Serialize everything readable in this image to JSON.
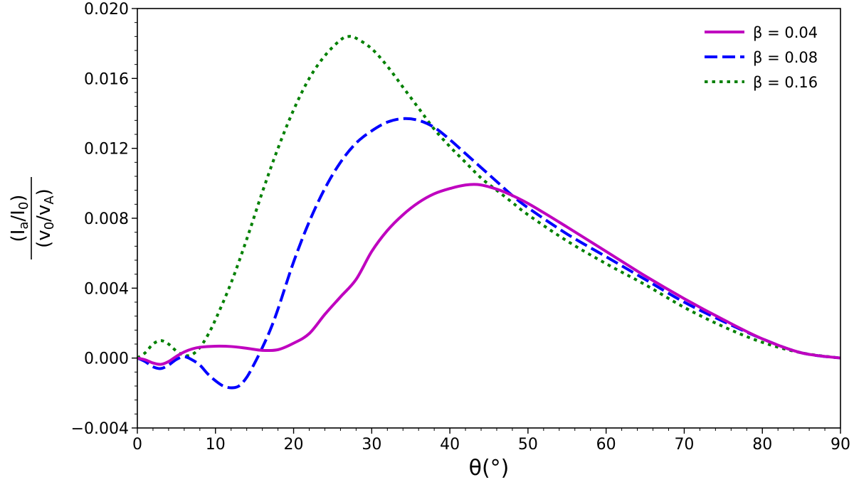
{
  "chart_data": {
    "type": "line",
    "xlabel": "θ(°)",
    "ylabel": "(I_a/I_0)/(v_0/v_A)",
    "xlim": [
      0,
      90
    ],
    "ylim": [
      -0.004,
      0.02
    ],
    "x_ticks": [
      "0",
      "10",
      "20",
      "30",
      "40",
      "50",
      "60",
      "70",
      "80",
      "90"
    ],
    "y_ticks": [
      "−0.004",
      "0.000",
      "0.004",
      "0.008",
      "0.012",
      "0.016",
      "0.020"
    ],
    "grid": false,
    "legend_position": "top-right",
    "series": [
      {
        "name": "β = 0.04",
        "color": "#BF00BF",
        "style": "solid",
        "points": [
          [
            0,
            0
          ],
          [
            1,
            -0.0001
          ],
          [
            2,
            -0.00028
          ],
          [
            3,
            -0.00036
          ],
          [
            4,
            -0.0002
          ],
          [
            5,
            0.0001
          ],
          [
            6,
            0.00035
          ],
          [
            7,
            0.00052
          ],
          [
            8,
            0.00062
          ],
          [
            10,
            0.00068
          ],
          [
            12,
            0.00066
          ],
          [
            14,
            0.00056
          ],
          [
            16,
            0.00044
          ],
          [
            18,
            0.00048
          ],
          [
            20,
            0.00085
          ],
          [
            22,
            0.0014
          ],
          [
            24,
            0.0025
          ],
          [
            26,
            0.0035
          ],
          [
            28,
            0.0045
          ],
          [
            30,
            0.0061
          ],
          [
            32,
            0.0073
          ],
          [
            34,
            0.0082
          ],
          [
            36,
            0.0089
          ],
          [
            38,
            0.0094
          ],
          [
            40,
            0.0097
          ],
          [
            42,
            0.0099
          ],
          [
            43.5,
            0.00993
          ],
          [
            45,
            0.0098
          ],
          [
            47,
            0.0095
          ],
          [
            50,
            0.00885
          ],
          [
            55,
            0.0075
          ],
          [
            60,
            0.0061
          ],
          [
            65,
            0.0047
          ],
          [
            70,
            0.0034
          ],
          [
            75,
            0.0022
          ],
          [
            80,
            0.0011
          ],
          [
            85,
            0.0003
          ],
          [
            90,
            0
          ]
        ]
      },
      {
        "name": "β = 0.08",
        "color": "#0000FF",
        "style": "dashed",
        "points": [
          [
            0,
            0
          ],
          [
            1,
            -0.0002
          ],
          [
            2,
            -0.0005
          ],
          [
            3,
            -0.0006
          ],
          [
            4,
            -0.0004
          ],
          [
            5,
            -8e-05
          ],
          [
            6,
            8e-05
          ],
          [
            7,
            -0.0001
          ],
          [
            8,
            -0.0004
          ],
          [
            9,
            -0.0009
          ],
          [
            10,
            -0.0013
          ],
          [
            11,
            -0.0016
          ],
          [
            12,
            -0.0017
          ],
          [
            13,
            -0.0016
          ],
          [
            14,
            -0.0011
          ],
          [
            15,
            -0.0003
          ],
          [
            16,
            0.0006
          ],
          [
            17,
            0.0016
          ],
          [
            18,
            0.0028
          ],
          [
            20,
            0.0055
          ],
          [
            22,
            0.0078
          ],
          [
            24,
            0.0097
          ],
          [
            26,
            0.0112
          ],
          [
            28,
            0.0123
          ],
          [
            30,
            0.013
          ],
          [
            32,
            0.0135
          ],
          [
            34,
            0.0137
          ],
          [
            36,
            0.0136
          ],
          [
            38,
            0.0132
          ],
          [
            40,
            0.0125
          ],
          [
            42,
            0.0117
          ],
          [
            44,
            0.0109
          ],
          [
            46,
            0.0101
          ],
          [
            48,
            0.0093
          ],
          [
            50,
            0.0086
          ],
          [
            55,
            0.0071
          ],
          [
            60,
            0.0058
          ],
          [
            65,
            0.0045
          ],
          [
            70,
            0.0032
          ],
          [
            75,
            0.0021
          ],
          [
            80,
            0.0011
          ],
          [
            85,
            0.0003
          ],
          [
            90,
            0
          ]
        ]
      },
      {
        "name": "β = 0.16",
        "color": "#008000",
        "style": "dotted",
        "points": [
          [
            0,
            0
          ],
          [
            1,
            0.0003
          ],
          [
            2,
            0.0008
          ],
          [
            3,
            0.001
          ],
          [
            4,
            0.0008
          ],
          [
            5,
            0.0004
          ],
          [
            6,
            0.00015
          ],
          [
            7,
            0.0002
          ],
          [
            8,
            0.0006
          ],
          [
            9,
            0.0013
          ],
          [
            10,
            0.0022
          ],
          [
            12,
            0.0043
          ],
          [
            14,
            0.0068
          ],
          [
            16,
            0.0095
          ],
          [
            18,
            0.012
          ],
          [
            20,
            0.0142
          ],
          [
            22,
            0.016
          ],
          [
            24,
            0.0173
          ],
          [
            26,
            0.0182
          ],
          [
            27,
            0.0184
          ],
          [
            28,
            0.0183
          ],
          [
            30,
            0.0177
          ],
          [
            32,
            0.0167
          ],
          [
            34,
            0.0155
          ],
          [
            36,
            0.0143
          ],
          [
            38,
            0.0131
          ],
          [
            40,
            0.0121
          ],
          [
            42,
            0.0112
          ],
          [
            44,
            0.0103
          ],
          [
            46,
            0.0096
          ],
          [
            48,
            0.0089
          ],
          [
            50,
            0.0082
          ],
          [
            55,
            0.0067
          ],
          [
            60,
            0.0054
          ],
          [
            65,
            0.0042
          ],
          [
            70,
            0.0029
          ],
          [
            75,
            0.0018
          ],
          [
            80,
            0.0009
          ],
          [
            85,
            0.0003
          ],
          [
            90,
            0
          ]
        ]
      }
    ]
  }
}
